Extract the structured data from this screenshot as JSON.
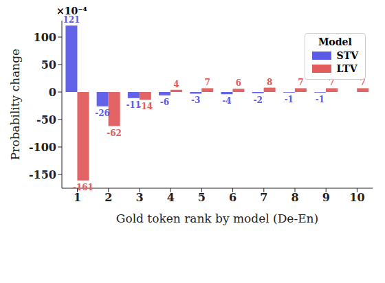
{
  "chart_data": {
    "type": "bar",
    "x_label": "Gold token rank by model (De-En)",
    "y_label": "Probability change",
    "annotations": [
      "×10⁻⁴"
    ],
    "legend_title": "Model",
    "categories": [
      "1",
      "2",
      "3",
      "4",
      "5",
      "6",
      "7",
      "8",
      "9",
      "10"
    ],
    "series": [
      {
        "name": "STV",
        "color": "#5b5be8",
        "values": [
          121,
          -26,
          -11,
          -6,
          -3,
          -4,
          -2,
          -1,
          -1,
          0
        ]
      },
      {
        "name": "LTV",
        "color": "#e25c5c",
        "values": [
          -161,
          -62,
          -14,
          4,
          7,
          6,
          8,
          7,
          7,
          7
        ]
      }
    ],
    "ylim": [
      -175,
      130
    ],
    "yticks": [
      -150,
      -100,
      -50,
      0,
      50,
      100
    ],
    "grid": false,
    "legend": "upper right",
    "data_labels": true
  }
}
